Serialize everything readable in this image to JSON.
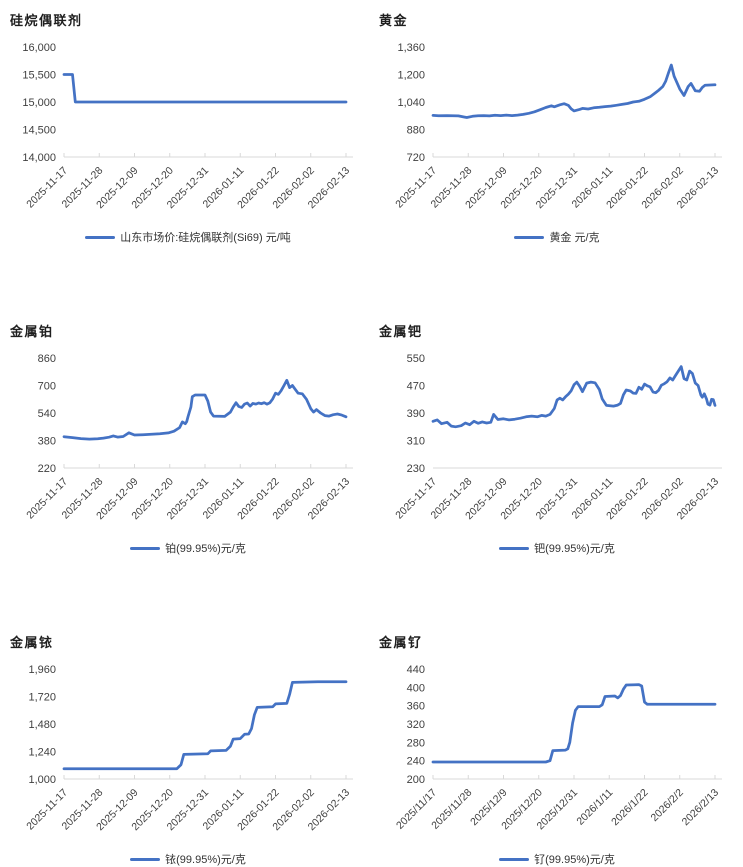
{
  "accent_color": "#4472C4",
  "axis_color": "#d9d9d9",
  "chart_data": [
    {
      "type": "line",
      "title": "硅烷偶联剂",
      "legend": "山东市场价:硅烷偶联剂(Si69) 元/吨",
      "legend_position": "bottom",
      "grid": false,
      "axis_ticks": true,
      "y_min": 14000,
      "y_max": 16000,
      "y_ticks": [
        "16,000",
        "15,500",
        "15,000",
        "14,500",
        "14,000"
      ],
      "x_labels": [
        "2025-11-17",
        "2025-11-28",
        "2025-12-09",
        "2025-12-20",
        "2025-12-31",
        "2026-01-11",
        "2026-01-22",
        "2026-02-02",
        "2026-02-13"
      ],
      "points": [
        [
          0,
          15500
        ],
        [
          0.03,
          15500
        ],
        [
          0.04,
          15000
        ],
        [
          1,
          15000
        ]
      ]
    },
    {
      "type": "line",
      "title": "黄金",
      "legend": "黄金 元/克",
      "legend_position": "bottom",
      "grid": false,
      "axis_ticks": true,
      "y_min": 720,
      "y_max": 1360,
      "y_ticks": [
        "1,360",
        "1,200",
        "1,040",
        "880",
        "720"
      ],
      "x_labels": [
        "2025-11-17",
        "2025-11-28",
        "2025-12-09",
        "2025-12-20",
        "2025-12-31",
        "2026-01-11",
        "2026-01-22",
        "2026-02-02",
        "2026-02-13"
      ],
      "points": [
        [
          0,
          962
        ],
        [
          0.02,
          960
        ],
        [
          0.05,
          961
        ],
        [
          0.07,
          960
        ],
        [
          0.09,
          959
        ],
        [
          0.11,
          953
        ],
        [
          0.12,
          950
        ],
        [
          0.14,
          957
        ],
        [
          0.16,
          960
        ],
        [
          0.18,
          961
        ],
        [
          0.2,
          959
        ],
        [
          0.22,
          963
        ],
        [
          0.24,
          961
        ],
        [
          0.26,
          964
        ],
        [
          0.28,
          961
        ],
        [
          0.3,
          964
        ],
        [
          0.32,
          968
        ],
        [
          0.34,
          974
        ],
        [
          0.36,
          983
        ],
        [
          0.38,
          995
        ],
        [
          0.4,
          1008
        ],
        [
          0.42,
          1018
        ],
        [
          0.43,
          1012
        ],
        [
          0.45,
          1024
        ],
        [
          0.465,
          1030
        ],
        [
          0.48,
          1020
        ],
        [
          0.49,
          1000
        ],
        [
          0.5,
          988
        ],
        [
          0.52,
          997
        ],
        [
          0.53,
          1003
        ],
        [
          0.55,
          999
        ],
        [
          0.57,
          1006
        ],
        [
          0.59,
          1009
        ],
        [
          0.61,
          1013
        ],
        [
          0.63,
          1016
        ],
        [
          0.65,
          1021
        ],
        [
          0.67,
          1026
        ],
        [
          0.69,
          1031
        ],
        [
          0.71,
          1040
        ],
        [
          0.73,
          1044
        ],
        [
          0.75,
          1056
        ],
        [
          0.77,
          1070
        ],
        [
          0.79,
          1095
        ],
        [
          0.8,
          1108
        ],
        [
          0.815,
          1130
        ],
        [
          0.825,
          1160
        ],
        [
          0.835,
          1210
        ],
        [
          0.845,
          1255
        ],
        [
          0.855,
          1190
        ],
        [
          0.875,
          1115
        ],
        [
          0.89,
          1078
        ],
        [
          0.905,
          1130
        ],
        [
          0.915,
          1148
        ],
        [
          0.93,
          1105
        ],
        [
          0.945,
          1102
        ],
        [
          0.955,
          1125
        ],
        [
          0.965,
          1138
        ],
        [
          1,
          1140
        ]
      ]
    },
    {
      "type": "line",
      "title": "金属铂",
      "legend": "铂(99.95%)元/克",
      "legend_position": "bottom",
      "grid": false,
      "axis_ticks": true,
      "y_min": 220,
      "y_max": 860,
      "y_ticks": [
        "860",
        "700",
        "540",
        "380",
        "220"
      ],
      "x_labels": [
        "2025-11-17",
        "2025-11-28",
        "2025-12-09",
        "2025-12-20",
        "2025-12-31",
        "2026-01-11",
        "2026-01-22",
        "2026-02-02",
        "2026-02-13"
      ],
      "points": [
        [
          0,
          402
        ],
        [
          0.03,
          397
        ],
        [
          0.06,
          391
        ],
        [
          0.09,
          388
        ],
        [
          0.12,
          390
        ],
        [
          0.14,
          394
        ],
        [
          0.16,
          399
        ],
        [
          0.175,
          407
        ],
        [
          0.19,
          400
        ],
        [
          0.21,
          403
        ],
        [
          0.23,
          425
        ],
        [
          0.25,
          412
        ],
        [
          0.28,
          414
        ],
        [
          0.31,
          416
        ],
        [
          0.34,
          419
        ],
        [
          0.37,
          424
        ],
        [
          0.39,
          434
        ],
        [
          0.41,
          455
        ],
        [
          0.42,
          488
        ],
        [
          0.43,
          478
        ],
        [
          0.435,
          490
        ],
        [
          0.44,
          520
        ],
        [
          0.45,
          575
        ],
        [
          0.455,
          635
        ],
        [
          0.465,
          645
        ],
        [
          0.5,
          645
        ],
        [
          0.51,
          610
        ],
        [
          0.52,
          545
        ],
        [
          0.53,
          522
        ],
        [
          0.57,
          520
        ],
        [
          0.59,
          545
        ],
        [
          0.6,
          575
        ],
        [
          0.61,
          600
        ],
        [
          0.62,
          578
        ],
        [
          0.63,
          572
        ],
        [
          0.64,
          592
        ],
        [
          0.65,
          598
        ],
        [
          0.66,
          580
        ],
        [
          0.67,
          596
        ],
        [
          0.68,
          592
        ],
        [
          0.69,
          598
        ],
        [
          0.7,
          594
        ],
        [
          0.71,
          600
        ],
        [
          0.72,
          592
        ],
        [
          0.73,
          600
        ],
        [
          0.74,
          622
        ],
        [
          0.75,
          655
        ],
        [
          0.76,
          648
        ],
        [
          0.77,
          670
        ],
        [
          0.78,
          700
        ],
        [
          0.79,
          730
        ],
        [
          0.8,
          688
        ],
        [
          0.81,
          700
        ],
        [
          0.82,
          678
        ],
        [
          0.83,
          655
        ],
        [
          0.845,
          652
        ],
        [
          0.86,
          620
        ],
        [
          0.875,
          565
        ],
        [
          0.885,
          545
        ],
        [
          0.895,
          560
        ],
        [
          0.91,
          540
        ],
        [
          0.925,
          525
        ],
        [
          0.94,
          522
        ],
        [
          0.955,
          530
        ],
        [
          0.97,
          534
        ],
        [
          0.985,
          528
        ],
        [
          1,
          518
        ]
      ]
    },
    {
      "type": "line",
      "title": "金属钯",
      "legend": "钯(99.95%)元/克",
      "legend_position": "bottom",
      "grid": false,
      "axis_ticks": false,
      "y_min": 230,
      "y_max": 550,
      "y_ticks": [
        "550",
        "470",
        "390",
        "310",
        "230"
      ],
      "x_labels": [
        "2025-11-17",
        "2025-11-28",
        "2025-12-09",
        "2025-12-20",
        "2025-12-31",
        "2026-01-11",
        "2026-01-22",
        "2026-02-02",
        "2026-02-13"
      ],
      "points": [
        [
          0,
          366
        ],
        [
          0.015,
          370
        ],
        [
          0.03,
          359
        ],
        [
          0.05,
          363
        ],
        [
          0.065,
          352
        ],
        [
          0.08,
          350
        ],
        [
          0.1,
          353
        ],
        [
          0.115,
          361
        ],
        [
          0.13,
          356
        ],
        [
          0.145,
          366
        ],
        [
          0.16,
          360
        ],
        [
          0.175,
          364
        ],
        [
          0.19,
          361
        ],
        [
          0.205,
          363
        ],
        [
          0.215,
          386
        ],
        [
          0.23,
          371
        ],
        [
          0.25,
          373
        ],
        [
          0.27,
          370
        ],
        [
          0.29,
          372
        ],
        [
          0.31,
          375
        ],
        [
          0.33,
          379
        ],
        [
          0.35,
          381
        ],
        [
          0.37,
          379
        ],
        [
          0.385,
          383
        ],
        [
          0.4,
          381
        ],
        [
          0.415,
          386
        ],
        [
          0.43,
          403
        ],
        [
          0.44,
          428
        ],
        [
          0.45,
          433
        ],
        [
          0.46,
          428
        ],
        [
          0.47,
          437
        ],
        [
          0.48,
          445
        ],
        [
          0.49,
          455
        ],
        [
          0.5,
          472
        ],
        [
          0.51,
          480
        ],
        [
          0.52,
          468
        ],
        [
          0.53,
          452
        ],
        [
          0.545,
          477
        ],
        [
          0.56,
          480
        ],
        [
          0.575,
          478
        ],
        [
          0.59,
          458
        ],
        [
          0.6,
          431
        ],
        [
          0.615,
          412
        ],
        [
          0.64,
          410
        ],
        [
          0.655,
          413
        ],
        [
          0.665,
          418
        ],
        [
          0.675,
          443
        ],
        [
          0.685,
          457
        ],
        [
          0.7,
          454
        ],
        [
          0.71,
          448
        ],
        [
          0.72,
          447
        ],
        [
          0.73,
          465
        ],
        [
          0.74,
          459
        ],
        [
          0.75,
          474
        ],
        [
          0.76,
          469
        ],
        [
          0.77,
          466
        ],
        [
          0.78,
          451
        ],
        [
          0.79,
          449
        ],
        [
          0.8,
          456
        ],
        [
          0.81,
          471
        ],
        [
          0.82,
          475
        ],
        [
          0.83,
          481
        ],
        [
          0.84,
          492
        ],
        [
          0.85,
          486
        ],
        [
          0.86,
          499
        ],
        [
          0.87,
          512
        ],
        [
          0.88,
          525
        ],
        [
          0.89,
          490
        ],
        [
          0.9,
          486
        ],
        [
          0.91,
          512
        ],
        [
          0.92,
          505
        ],
        [
          0.93,
          477
        ],
        [
          0.94,
          470
        ],
        [
          0.95,
          442
        ],
        [
          0.955,
          436
        ],
        [
          0.962,
          446
        ],
        [
          0.97,
          431
        ],
        [
          0.975,
          416
        ],
        [
          0.982,
          413
        ],
        [
          0.988,
          430
        ],
        [
          0.994,
          429
        ],
        [
          1,
          412
        ]
      ]
    },
    {
      "type": "line",
      "title": "金属铱",
      "legend": "铱(99.95%)元/克",
      "legend_position": "bottom",
      "grid": false,
      "axis_ticks": true,
      "y_min": 1000,
      "y_max": 1960,
      "y_ticks": [
        "1,960",
        "1,720",
        "1,480",
        "1,240",
        "1,000"
      ],
      "x_labels": [
        "2025-11-17",
        "2025-11-28",
        "2025-12-09",
        "2025-12-20",
        "2025-12-31",
        "2026-01-11",
        "2026-01-22",
        "2026-02-02",
        "2026-02-13"
      ],
      "points": [
        [
          0,
          1090
        ],
        [
          0.4,
          1090
        ],
        [
          0.415,
          1125
        ],
        [
          0.425,
          1215
        ],
        [
          0.51,
          1220
        ],
        [
          0.52,
          1245
        ],
        [
          0.575,
          1250
        ],
        [
          0.59,
          1285
        ],
        [
          0.6,
          1348
        ],
        [
          0.625,
          1353
        ],
        [
          0.64,
          1390
        ],
        [
          0.655,
          1393
        ],
        [
          0.665,
          1440
        ],
        [
          0.675,
          1560
        ],
        [
          0.685,
          1625
        ],
        [
          0.74,
          1630
        ],
        [
          0.75,
          1655
        ],
        [
          0.79,
          1660
        ],
        [
          0.8,
          1738
        ],
        [
          0.81,
          1843
        ],
        [
          0.9,
          1848
        ],
        [
          1,
          1848
        ]
      ]
    },
    {
      "type": "line",
      "title": "金属钌",
      "legend": "钌(99.95%)元/克",
      "legend_position": "bottom",
      "grid": false,
      "axis_ticks": true,
      "y_min": 200,
      "y_max": 440,
      "y_ticks": [
        "440",
        "400",
        "360",
        "320",
        "280",
        "240",
        "200"
      ],
      "x_labels": [
        "2025/11/17",
        "2025/11/28",
        "2025/12/9",
        "2025/12/20",
        "2025/12/31",
        "2026/1/11",
        "2026/1/22",
        "2026/2/2",
        "2026/2/13"
      ],
      "points": [
        [
          0,
          237
        ],
        [
          0.4,
          237
        ],
        [
          0.415,
          240
        ],
        [
          0.425,
          262
        ],
        [
          0.47,
          263
        ],
        [
          0.478,
          266
        ],
        [
          0.485,
          280
        ],
        [
          0.495,
          322
        ],
        [
          0.505,
          350
        ],
        [
          0.515,
          358
        ],
        [
          0.59,
          358
        ],
        [
          0.6,
          362
        ],
        [
          0.61,
          380
        ],
        [
          0.645,
          381
        ],
        [
          0.655,
          377
        ],
        [
          0.665,
          382
        ],
        [
          0.675,
          396
        ],
        [
          0.685,
          405
        ],
        [
          0.73,
          406
        ],
        [
          0.74,
          403
        ],
        [
          0.75,
          368
        ],
        [
          0.76,
          363
        ],
        [
          1,
          363
        ]
      ]
    }
  ]
}
